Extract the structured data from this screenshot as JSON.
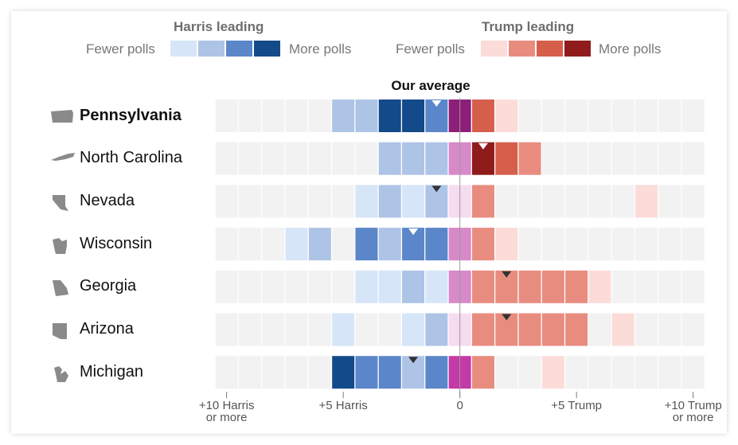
{
  "legend": {
    "harris": {
      "title": "Harris leading",
      "fewer": "Fewer polls",
      "more": "More polls",
      "colors": [
        "#d6e6f8",
        "#aec4e6",
        "#5b86c9",
        "#134a8a"
      ]
    },
    "trump": {
      "title": "Trump leading",
      "fewer": "Fewer polls",
      "more": "More polls",
      "colors": [
        "#fbdcd9",
        "#e98c80",
        "#d65f4c",
        "#8f1b1b"
      ]
    }
  },
  "average_label": "Our average",
  "chart_data": {
    "type": "heatmap",
    "title": "Our average",
    "x_unit": "margin in points (negative = Harris lead, positive = Trump lead)",
    "xlim": [
      -10.5,
      10.5
    ],
    "bin_width": 1,
    "ticks": [
      {
        "value": -10,
        "label": "+10 Harris",
        "label2": "or more"
      },
      {
        "value": -5,
        "label": "+5 Harris",
        "label2": ""
      },
      {
        "value": 0,
        "label": "0",
        "label2": ""
      },
      {
        "value": 5,
        "label": "+5 Trump",
        "label2": ""
      },
      {
        "value": 10,
        "label": "+10 Trump",
        "label2": "or more"
      }
    ],
    "color_scale": {
      "0": "#f2f2f2",
      "-1": "#d6e6f8",
      "-2": "#aec4e6",
      "-3": "#5b86c9",
      "-4": "#134a8a",
      "1": "#fbdcd9",
      "2": "#e98c80",
      "3": "#d65f4c",
      "4": "#8f1b1b"
    },
    "center_colors": {
      "-1": "#f6dcef",
      "-2": "#d889c8",
      "-3": "#c43aa6",
      "-4": "#8d1f78"
    },
    "note": "cell levels: 0=no polls, 1-4 poll density; negative=Harris, positive=Trump; center = bin straddling 0",
    "states": [
      {
        "name": "Pennsylvania",
        "bold": true,
        "icon": "pennsylvania-icon",
        "average": -1,
        "marker": "white",
        "cells": [
          0,
          0,
          0,
          0,
          0,
          -2,
          -2,
          -4,
          -4,
          -3,
          -4,
          3,
          1,
          0,
          0,
          0,
          0,
          0,
          0,
          0,
          0
        ]
      },
      {
        "name": "North Carolina",
        "bold": false,
        "icon": "north-carolina-icon",
        "average": 1,
        "marker": "white",
        "cells": [
          0,
          0,
          0,
          0,
          0,
          0,
          0,
          -2,
          -2,
          -2,
          -2,
          4,
          3,
          2,
          0,
          0,
          0,
          0,
          0,
          0,
          0
        ]
      },
      {
        "name": "Nevada",
        "bold": false,
        "icon": "nevada-icon",
        "average": -1,
        "marker": "dark",
        "cells": [
          0,
          0,
          0,
          0,
          0,
          0,
          -1,
          -2,
          -1,
          -2,
          -1,
          2,
          0,
          0,
          0,
          0,
          0,
          0,
          1,
          0,
          0
        ]
      },
      {
        "name": "Wisconsin",
        "bold": false,
        "icon": "wisconsin-icon",
        "average": -2,
        "marker": "white",
        "cells": [
          0,
          0,
          0,
          -1,
          -2,
          0,
          -3,
          -2,
          -3,
          -3,
          -2,
          2,
          1,
          0,
          0,
          0,
          0,
          0,
          0,
          0,
          0
        ]
      },
      {
        "name": "Georgia",
        "bold": false,
        "icon": "georgia-icon",
        "average": 2,
        "marker": "dark",
        "cells": [
          0,
          0,
          0,
          0,
          0,
          0,
          -1,
          -1,
          -2,
          -1,
          -2,
          2,
          2,
          2,
          2,
          2,
          1,
          0,
          0,
          0,
          0
        ]
      },
      {
        "name": "Arizona",
        "bold": false,
        "icon": "arizona-icon",
        "average": 2,
        "marker": "dark",
        "cells": [
          0,
          0,
          0,
          0,
          0,
          -1,
          0,
          0,
          -1,
          -2,
          -1,
          2,
          2,
          2,
          2,
          2,
          0,
          1,
          0,
          0,
          0
        ]
      },
      {
        "name": "Michigan",
        "bold": false,
        "icon": "michigan-icon",
        "average": -2,
        "marker": "dark",
        "cells": [
          0,
          0,
          0,
          0,
          0,
          -4,
          -3,
          -3,
          -2,
          -3,
          -3,
          2,
          0,
          0,
          1,
          0,
          0,
          0,
          0,
          0,
          0
        ]
      }
    ]
  }
}
